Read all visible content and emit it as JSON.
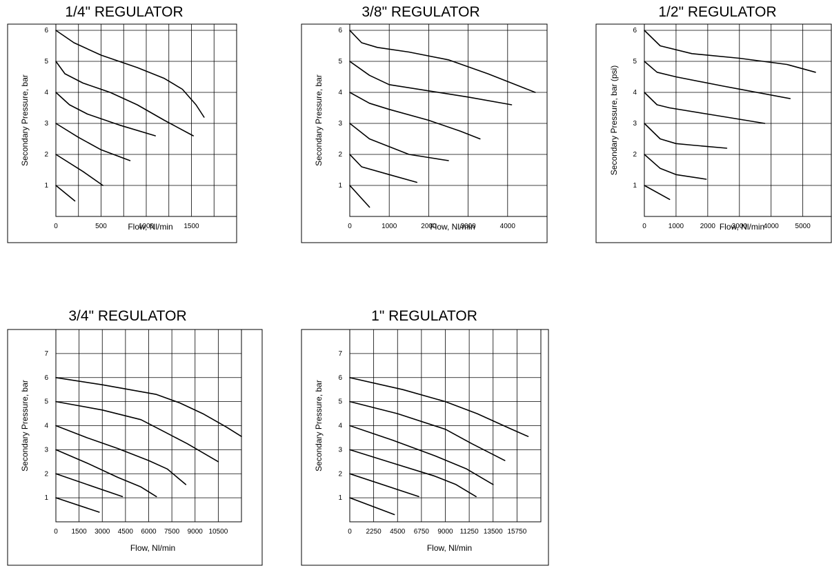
{
  "chart_data": [
    {
      "type": "line",
      "title": "1/4\" REGULATOR",
      "xlabel": "Flow, Nl/min",
      "ylabel": "Secondary Pressure, bar",
      "xlim": [
        0,
        2000
      ],
      "ylim": [
        0,
        6.2
      ],
      "x_ticks": [
        0,
        500,
        1000,
        1500
      ],
      "x_tick_labels": [
        "0",
        "500",
        "1000",
        "1500"
      ],
      "x_grid": [
        0,
        250,
        500,
        750,
        1000,
        1250,
        1500,
        1750,
        2000
      ],
      "y_ticks": [
        1,
        2,
        3,
        4,
        5,
        6
      ],
      "y_tick_labels": [
        "1",
        "2",
        "3",
        "4",
        "5",
        "6"
      ],
      "grid": true,
      "series": [
        {
          "x": [
            0,
            210
          ],
          "y": [
            1,
            0.5
          ]
        },
        {
          "x": [
            0,
            300,
            520
          ],
          "y": [
            2,
            1.45,
            1.0
          ]
        },
        {
          "x": [
            0,
            250,
            500,
            820
          ],
          "y": [
            3,
            2.55,
            2.15,
            1.8
          ]
        },
        {
          "x": [
            0,
            150,
            350,
            700,
            1100
          ],
          "y": [
            4,
            3.6,
            3.3,
            2.95,
            2.6
          ]
        },
        {
          "x": [
            0,
            100,
            300,
            600,
            900,
            1200,
            1520
          ],
          "y": [
            5,
            4.6,
            4.3,
            4.0,
            3.6,
            3.1,
            2.6
          ]
        },
        {
          "x": [
            0,
            200,
            500,
            900,
            1200,
            1400,
            1550,
            1640
          ],
          "y": [
            6,
            5.6,
            5.2,
            4.8,
            4.45,
            4.1,
            3.6,
            3.2
          ]
        }
      ]
    },
    {
      "type": "line",
      "title": "3/8\" REGULATOR",
      "xlabel": "Flow, Nl/min",
      "ylabel": "Secondary Pressure, bar",
      "xlim": [
        0,
        5000
      ],
      "ylim": [
        0,
        6.2
      ],
      "x_ticks": [
        0,
        1000,
        2000,
        3000,
        4000
      ],
      "x_tick_labels": [
        "0",
        "1000",
        "2000",
        "3000",
        "4000"
      ],
      "x_grid": [
        0,
        1000,
        2000,
        3000,
        4000,
        5000
      ],
      "y_ticks": [
        1,
        2,
        3,
        4,
        5,
        6
      ],
      "y_tick_labels": [
        "1",
        "2",
        "3",
        "4",
        "5",
        "6"
      ],
      "grid": true,
      "series": [
        {
          "x": [
            0,
            500
          ],
          "y": [
            1,
            0.3
          ]
        },
        {
          "x": [
            0,
            300,
            1000,
            1700
          ],
          "y": [
            2,
            1.6,
            1.35,
            1.1
          ]
        },
        {
          "x": [
            0,
            500,
            1000,
            1500,
            2000,
            2500
          ],
          "y": [
            3,
            2.5,
            2.25,
            2.0,
            1.9,
            1.8
          ]
        },
        {
          "x": [
            0,
            500,
            1000,
            2000,
            2800,
            3300
          ],
          "y": [
            4,
            3.65,
            3.45,
            3.1,
            2.75,
            2.5
          ]
        },
        {
          "x": [
            0,
            500,
            1000,
            2000,
            3000,
            4100
          ],
          "y": [
            5,
            4.55,
            4.25,
            4.05,
            3.85,
            3.6
          ]
        },
        {
          "x": [
            0,
            300,
            700,
            1500,
            2500,
            3500,
            4700
          ],
          "y": [
            6,
            5.6,
            5.45,
            5.3,
            5.05,
            4.6,
            4.0
          ]
        }
      ]
    },
    {
      "type": "line",
      "title": "1/2\" REGULATOR",
      "xlabel": "Flow, Nl/min",
      "ylabel": "Secondary Pressure, bar (psi)",
      "xlim": [
        0,
        5900
      ],
      "ylim": [
        0,
        6.2
      ],
      "x_ticks": [
        0,
        1000,
        2000,
        3000,
        4000,
        5000
      ],
      "x_tick_labels": [
        "0",
        "1000",
        "2000",
        "3000",
        "4000",
        "5000"
      ],
      "x_grid": [
        0,
        1000,
        2000,
        3000,
        4000,
        5000
      ],
      "y_ticks": [
        1,
        2,
        3,
        4,
        5,
        6
      ],
      "y_tick_labels": [
        "1",
        "2",
        "3",
        "4",
        "5",
        "6"
      ],
      "grid": true,
      "series": [
        {
          "x": [
            0,
            800
          ],
          "y": [
            1,
            0.55
          ]
        },
        {
          "x": [
            0,
            500,
            1000,
            1950
          ],
          "y": [
            2,
            1.55,
            1.35,
            1.2
          ]
        },
        {
          "x": [
            0,
            500,
            1000,
            1500,
            2600
          ],
          "y": [
            3,
            2.5,
            2.35,
            2.3,
            2.2
          ]
        },
        {
          "x": [
            0,
            400,
            800,
            2000,
            3800
          ],
          "y": [
            4,
            3.6,
            3.5,
            3.3,
            3.0
          ]
        },
        {
          "x": [
            0,
            400,
            1000,
            2500,
            4600
          ],
          "y": [
            5,
            4.65,
            4.5,
            4.2,
            3.8
          ]
        },
        {
          "x": [
            0,
            500,
            1500,
            3000,
            4500,
            5400
          ],
          "y": [
            6,
            5.5,
            5.25,
            5.1,
            4.9,
            4.65
          ]
        }
      ]
    },
    {
      "type": "line",
      "title": "3/4\" REGULATOR",
      "xlabel": "Flow, Nl/min",
      "ylabel": "Secondary Pressure, bar",
      "xlim": [
        0,
        12000
      ],
      "ylim": [
        0,
        8
      ],
      "x_ticks": [
        0,
        1500,
        3000,
        4500,
        6000,
        7500,
        9000,
        10500
      ],
      "x_tick_labels": [
        "0",
        "1500",
        "3000",
        "4500",
        "6000",
        "7500",
        "9000",
        "10500"
      ],
      "x_grid": [
        0,
        1500,
        3000,
        4500,
        6000,
        7500,
        9000,
        10500,
        12000
      ],
      "y_ticks": [
        1,
        2,
        3,
        4,
        5,
        6,
        7
      ],
      "y_tick_labels": [
        "1",
        "2",
        "3",
        "4",
        "5",
        "6",
        "7"
      ],
      "grid": true,
      "series": [
        {
          "x": [
            0,
            2800
          ],
          "y": [
            1,
            0.4
          ]
        },
        {
          "x": [
            0,
            4300
          ],
          "y": [
            2,
            1.05
          ]
        },
        {
          "x": [
            0,
            2000,
            4000,
            5500,
            6500
          ],
          "y": [
            3,
            2.45,
            1.85,
            1.45,
            1.05
          ]
        },
        {
          "x": [
            0,
            2000,
            4000,
            6000,
            7200,
            8400
          ],
          "y": [
            4,
            3.5,
            3.05,
            2.55,
            2.2,
            1.55
          ]
        },
        {
          "x": [
            0,
            3000,
            5500,
            7000,
            8500,
            10500
          ],
          "y": [
            5,
            4.65,
            4.25,
            3.75,
            3.25,
            2.5
          ]
        },
        {
          "x": [
            0,
            3000,
            6500,
            8000,
            9500,
            11000,
            12000
          ],
          "y": [
            6,
            5.7,
            5.3,
            4.95,
            4.5,
            3.95,
            3.55
          ]
        }
      ]
    },
    {
      "type": "line",
      "title": "1\" REGULATOR",
      "xlabel": "Flow, Nl/min",
      "ylabel": "Secondary Pressure, bar",
      "xlim": [
        0,
        18000
      ],
      "ylim": [
        0,
        8
      ],
      "x_ticks": [
        0,
        2250,
        4500,
        6750,
        9000,
        11250,
        13500,
        15750
      ],
      "x_tick_labels": [
        "0",
        "2250",
        "4500",
        "6750",
        "9000",
        "11250",
        "13500",
        "15750"
      ],
      "x_grid": [
        0,
        2250,
        4500,
        6750,
        9000,
        11250,
        13500,
        15750,
        18000
      ],
      "y_ticks": [
        1,
        2,
        3,
        4,
        5,
        6,
        7
      ],
      "y_tick_labels": [
        "1",
        "2",
        "3",
        "4",
        "5",
        "6",
        "7"
      ],
      "grid": true,
      "series": [
        {
          "x": [
            0,
            4200
          ],
          "y": [
            1,
            0.3
          ]
        },
        {
          "x": [
            0,
            6500
          ],
          "y": [
            2,
            1.05
          ]
        },
        {
          "x": [
            0,
            4000,
            8000,
            10000,
            11900
          ],
          "y": [
            3,
            2.45,
            1.9,
            1.55,
            1.05
          ]
        },
        {
          "x": [
            0,
            4000,
            8000,
            11000,
            13500
          ],
          "y": [
            4,
            3.4,
            2.75,
            2.2,
            1.55
          ]
        },
        {
          "x": [
            0,
            4500,
            9000,
            11500,
            14600
          ],
          "y": [
            5,
            4.5,
            3.85,
            3.25,
            2.55
          ]
        },
        {
          "x": [
            0,
            5000,
            9000,
            12000,
            15000,
            16800
          ],
          "y": [
            6,
            5.5,
            5.0,
            4.5,
            3.9,
            3.55
          ]
        }
      ]
    }
  ]
}
